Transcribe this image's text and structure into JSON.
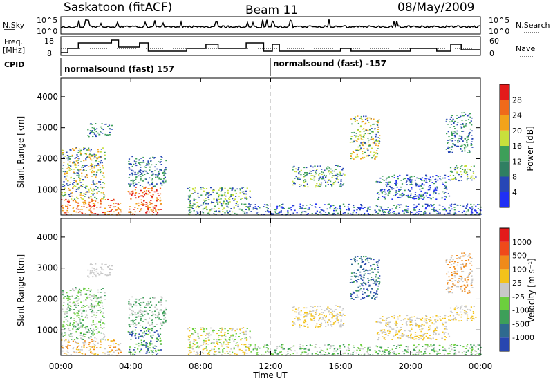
{
  "header": {
    "station": "Saskatoon (fitACF)",
    "beam": "Beam 11",
    "date": "08/May/2009"
  },
  "side_labels": {
    "nsky": "N.Sky",
    "nsky_scale_top": "10^5",
    "nsky_scale_bottom": "10^0",
    "nsearch": "N.Search",
    "nsearch_scale_top": "10^5",
    "nsearch_scale_bottom": "10^0",
    "freq": "Freq.",
    "freq_unit": "[MHz]",
    "freq_ticks": [
      "18",
      "8"
    ],
    "nave": "Nave",
    "nave_ticks": [
      "60",
      "0"
    ],
    "cpid": "CPID"
  },
  "cpid_segments": [
    {
      "label": "normalsound (fast) 157",
      "start_hour": 0
    },
    {
      "label": "normalsound (fast) -157",
      "start_hour": 12
    }
  ],
  "chart_data": [
    {
      "type": "heatmap",
      "panel": "power",
      "xlabel": "",
      "ylabel": "Slant Range [km]",
      "x_range_hours": [
        0,
        24
      ],
      "y_range_km": [
        180,
        4600
      ],
      "y_ticks": [
        "1000",
        "2000",
        "3000",
        "4000"
      ],
      "colorbar_label": "Power [dB]",
      "colorbar_ticks": [
        "4",
        "8",
        "12",
        "16",
        "20",
        "24",
        "28"
      ],
      "colorbar_colors": [
        "#1f2ff5",
        "#2746b6",
        "#2f7f62",
        "#3d9f59",
        "#c8e03c",
        "#f2a31a",
        "#f06a1a",
        "#e41a1a"
      ],
      "scatter_regions": [
        {
          "t0": 0.0,
          "t1": 3.4,
          "r0": 200,
          "r1": 700,
          "colors": [
            "#e41a1a",
            "#f06a1a",
            "#f2a31a"
          ]
        },
        {
          "t0": 0.0,
          "t1": 2.5,
          "r0": 700,
          "r1": 2400,
          "colors": [
            "#f2a31a",
            "#3d9f59",
            "#2746b6",
            "#c8e03c"
          ]
        },
        {
          "t0": 1.5,
          "t1": 2.9,
          "r0": 2700,
          "r1": 3150,
          "colors": [
            "#2746b6",
            "#3d9f59"
          ]
        },
        {
          "t0": 3.8,
          "t1": 5.7,
          "r0": 200,
          "r1": 1100,
          "colors": [
            "#e41a1a",
            "#f06a1a",
            "#f2a31a"
          ]
        },
        {
          "t0": 3.8,
          "t1": 6.0,
          "r0": 1100,
          "r1": 2100,
          "colors": [
            "#2746b6",
            "#3d9f59"
          ]
        },
        {
          "t0": 7.2,
          "t1": 10.8,
          "r0": 200,
          "r1": 1100,
          "colors": [
            "#2746b6",
            "#3d9f59",
            "#c8e03c"
          ]
        },
        {
          "t0": 10.8,
          "t1": 24.0,
          "r0": 200,
          "r1": 550,
          "colors": [
            "#2746b6",
            "#3d9f59",
            "#1f2ff5"
          ]
        },
        {
          "t0": 13.2,
          "t1": 16.2,
          "r0": 1100,
          "r1": 1800,
          "colors": [
            "#2746b6",
            "#3d9f59",
            "#c8e03c"
          ]
        },
        {
          "t0": 16.5,
          "t1": 18.2,
          "r0": 2000,
          "r1": 3400,
          "colors": [
            "#f2a31a",
            "#c8e03c",
            "#3d9f59",
            "#2746b6"
          ]
        },
        {
          "t0": 18.0,
          "t1": 22.2,
          "r0": 700,
          "r1": 1500,
          "colors": [
            "#2746b6",
            "#3d9f59",
            "#1f2ff5"
          ]
        },
        {
          "t0": 22.2,
          "t1": 23.7,
          "r0": 1300,
          "r1": 1800,
          "colors": [
            "#3d9f59",
            "#c8e03c",
            "#2746b6"
          ]
        },
        {
          "t0": 22.0,
          "t1": 23.5,
          "r0": 2200,
          "r1": 3500,
          "colors": [
            "#2746b6",
            "#3d9f59"
          ]
        }
      ]
    },
    {
      "type": "heatmap",
      "panel": "velocity",
      "xlabel": "Time UT",
      "ylabel": "Slant Range [km]",
      "x_range_hours": [
        0,
        24
      ],
      "x_ticks": [
        "00:00",
        "04:00",
        "08:00",
        "12:00",
        "16:00",
        "20:00",
        "00:00"
      ],
      "y_range_km": [
        180,
        4600
      ],
      "y_ticks": [
        "1000",
        "2000",
        "3000",
        "4000"
      ],
      "colorbar_label": "Velocity [m s⁻¹]",
      "colorbar_ticks": [
        "1000",
        "500",
        "100",
        "25",
        "-25",
        "-100",
        "-500",
        "-1000"
      ],
      "colorbar_colors": [
        "#2846b0",
        "#2f6a8f",
        "#3d9f59",
        "#6ccf3d",
        "#c8c8c8",
        "#f3c21a",
        "#f08a1a",
        "#f04a1a",
        "#e41a1a"
      ],
      "scatter_regions": [
        {
          "t0": 0.0,
          "t1": 3.4,
          "r0": 200,
          "r1": 700,
          "colors": [
            "#f3c21a",
            "#f08a1a",
            "#c8c8c8"
          ]
        },
        {
          "t0": 0.0,
          "t1": 2.5,
          "r0": 700,
          "r1": 2400,
          "colors": [
            "#c8c8c8",
            "#6ccf3d",
            "#3d9f59"
          ]
        },
        {
          "t0": 1.5,
          "t1": 2.9,
          "r0": 2700,
          "r1": 3150,
          "colors": [
            "#c8c8c8"
          ]
        },
        {
          "t0": 3.8,
          "t1": 5.7,
          "r0": 200,
          "r1": 1100,
          "colors": [
            "#2846b0",
            "#3d9f59",
            "#6ccf3d"
          ]
        },
        {
          "t0": 3.8,
          "t1": 6.0,
          "r0": 1100,
          "r1": 2100,
          "colors": [
            "#c8c8c8",
            "#3d9f59"
          ]
        },
        {
          "t0": 7.2,
          "t1": 10.8,
          "r0": 200,
          "r1": 1100,
          "colors": [
            "#c8c8c8",
            "#f3c21a",
            "#6ccf3d"
          ]
        },
        {
          "t0": 10.8,
          "t1": 24.0,
          "r0": 200,
          "r1": 550,
          "colors": [
            "#6ccf3d",
            "#3d9f59",
            "#c8c8c8"
          ]
        },
        {
          "t0": 13.2,
          "t1": 16.2,
          "r0": 1100,
          "r1": 1800,
          "colors": [
            "#c8c8c8",
            "#f3c21a"
          ]
        },
        {
          "t0": 16.5,
          "t1": 18.2,
          "r0": 2000,
          "r1": 3400,
          "colors": [
            "#2846b0",
            "#2f6a8f",
            "#3d9f59"
          ]
        },
        {
          "t0": 18.0,
          "t1": 22.2,
          "r0": 700,
          "r1": 1500,
          "colors": [
            "#c8c8c8",
            "#f3c21a"
          ]
        },
        {
          "t0": 22.2,
          "t1": 23.7,
          "r0": 1300,
          "r1": 1800,
          "colors": [
            "#c8c8c8",
            "#f3c21a"
          ]
        },
        {
          "t0": 22.0,
          "t1": 23.5,
          "r0": 2200,
          "r1": 3500,
          "colors": [
            "#c8c8c8",
            "#f08a1a"
          ]
        }
      ]
    }
  ]
}
